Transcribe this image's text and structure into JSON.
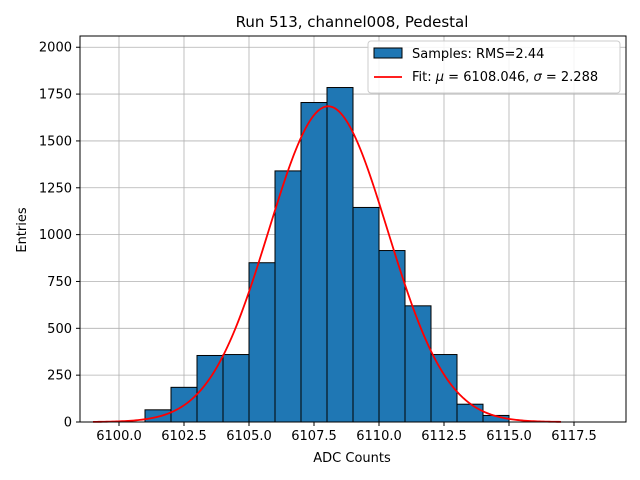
{
  "chart_data": {
    "type": "bar",
    "title": "Run 513, channel008, Pedestal",
    "xlabel": "ADC Counts",
    "ylabel": "Entries",
    "xlim": [
      6098.5,
      6119.5
    ],
    "ylim": [
      0,
      2060
    ],
    "xticks": [
      "6100.0",
      "6102.5",
      "6105.0",
      "6107.5",
      "6110.0",
      "6112.5",
      "6115.0",
      "6117.5"
    ],
    "xtick_values": [
      6100.0,
      6102.5,
      6105.0,
      6107.5,
      6110.0,
      6112.5,
      6115.0,
      6117.5
    ],
    "yticks": [
      "0",
      "250",
      "500",
      "750",
      "1000",
      "1250",
      "1500",
      "1750",
      "2000"
    ],
    "ytick_values": [
      0,
      250,
      500,
      750,
      1000,
      1250,
      1500,
      1750,
      2000
    ],
    "grid": true,
    "legend_position": "top-right",
    "bins": [
      {
        "left": 6101.0,
        "right": 6102.0,
        "value": 65
      },
      {
        "left": 6102.0,
        "right": 6103.0,
        "value": 185
      },
      {
        "left": 6103.0,
        "right": 6104.0,
        "value": 355
      },
      {
        "left": 6104.0,
        "right": 6105.0,
        "value": 360
      },
      {
        "left": 6105.0,
        "right": 6106.0,
        "value": 850
      },
      {
        "left": 6106.0,
        "right": 6107.0,
        "value": 1340
      },
      {
        "left": 6107.0,
        "right": 6108.0,
        "value": 1705
      },
      {
        "left": 6108.0,
        "right": 6109.0,
        "value": 1785
      },
      {
        "left": 6109.0,
        "right": 6110.0,
        "value": 1145
      },
      {
        "left": 6110.0,
        "right": 6111.0,
        "value": 915
      },
      {
        "left": 6111.0,
        "right": 6112.0,
        "value": 620
      },
      {
        "left": 6112.0,
        "right": 6113.0,
        "value": 360
      },
      {
        "left": 6113.0,
        "right": 6114.0,
        "value": 95
      },
      {
        "left": 6114.0,
        "right": 6115.0,
        "value": 35
      }
    ],
    "fit": {
      "mu": 6108.046,
      "sigma": 2.288,
      "amplitude": 1685,
      "x_range": [
        6099.0,
        6117.0
      ],
      "color": "#ff0000"
    },
    "bar_color": "#1f77b4",
    "legend": {
      "samples_label": "Samples: RMS=2.44",
      "fit_label_prefix": "Fit: ",
      "fit_mu_symbol": "μ",
      "fit_mu_text": " = 6108.046, ",
      "fit_sigma_symbol": "σ",
      "fit_sigma_text": " = 2.288"
    }
  }
}
